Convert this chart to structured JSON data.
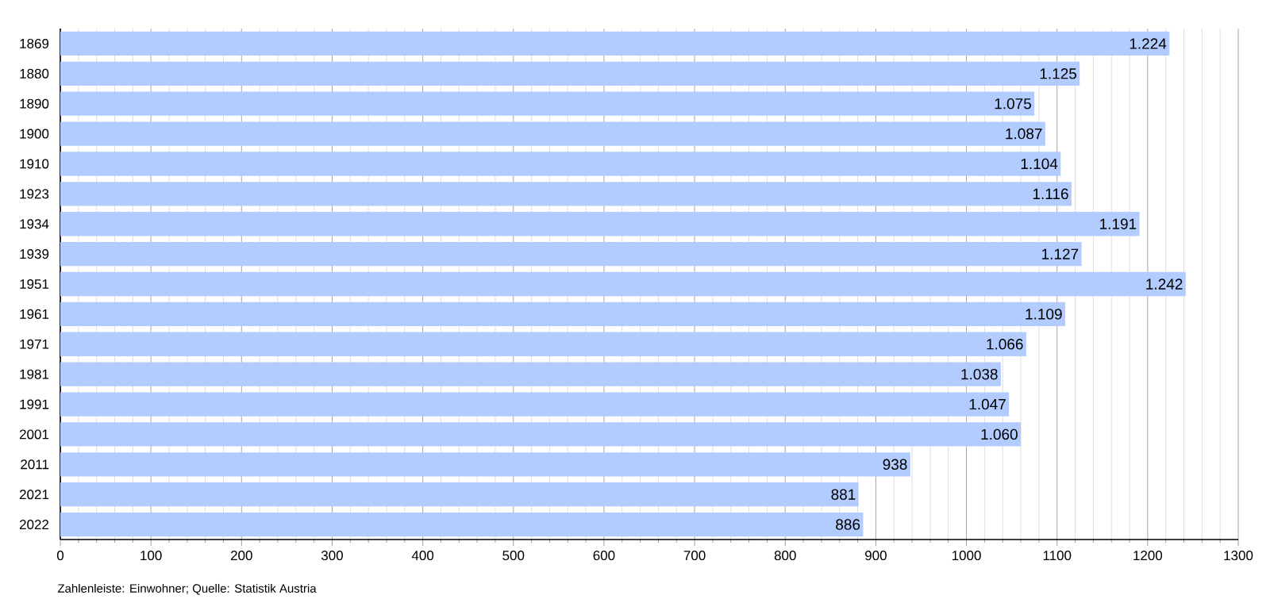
{
  "chart_data": {
    "type": "bar",
    "orientation": "horizontal",
    "categories": [
      "1869",
      "1880",
      "1890",
      "1900",
      "1910",
      "1923",
      "1934",
      "1939",
      "1951",
      "1961",
      "1971",
      "1981",
      "1991",
      "2001",
      "2011",
      "2021",
      "2022"
    ],
    "values": [
      1224,
      1125,
      1075,
      1087,
      1104,
      1116,
      1191,
      1127,
      1242,
      1109,
      1066,
      1038,
      1047,
      1060,
      938,
      881,
      886
    ],
    "value_labels": [
      "1.224",
      "1.125",
      "1.075",
      "1.087",
      "1.104",
      "1.116",
      "1.191",
      "1.127",
      "1.242",
      "1.109",
      "1.066",
      "1.038",
      "1.047",
      "1.060",
      "938",
      "881",
      "886"
    ],
    "color": "#b3ccff",
    "xlim": [
      0,
      1300
    ],
    "xticks": [
      0,
      100,
      200,
      300,
      400,
      500,
      600,
      700,
      800,
      900,
      1000,
      1100,
      1200,
      1300
    ],
    "grid": "x",
    "annotations": [
      "Zahlenleiste: Einwohner; Quelle: Statistik Austria"
    ]
  }
}
